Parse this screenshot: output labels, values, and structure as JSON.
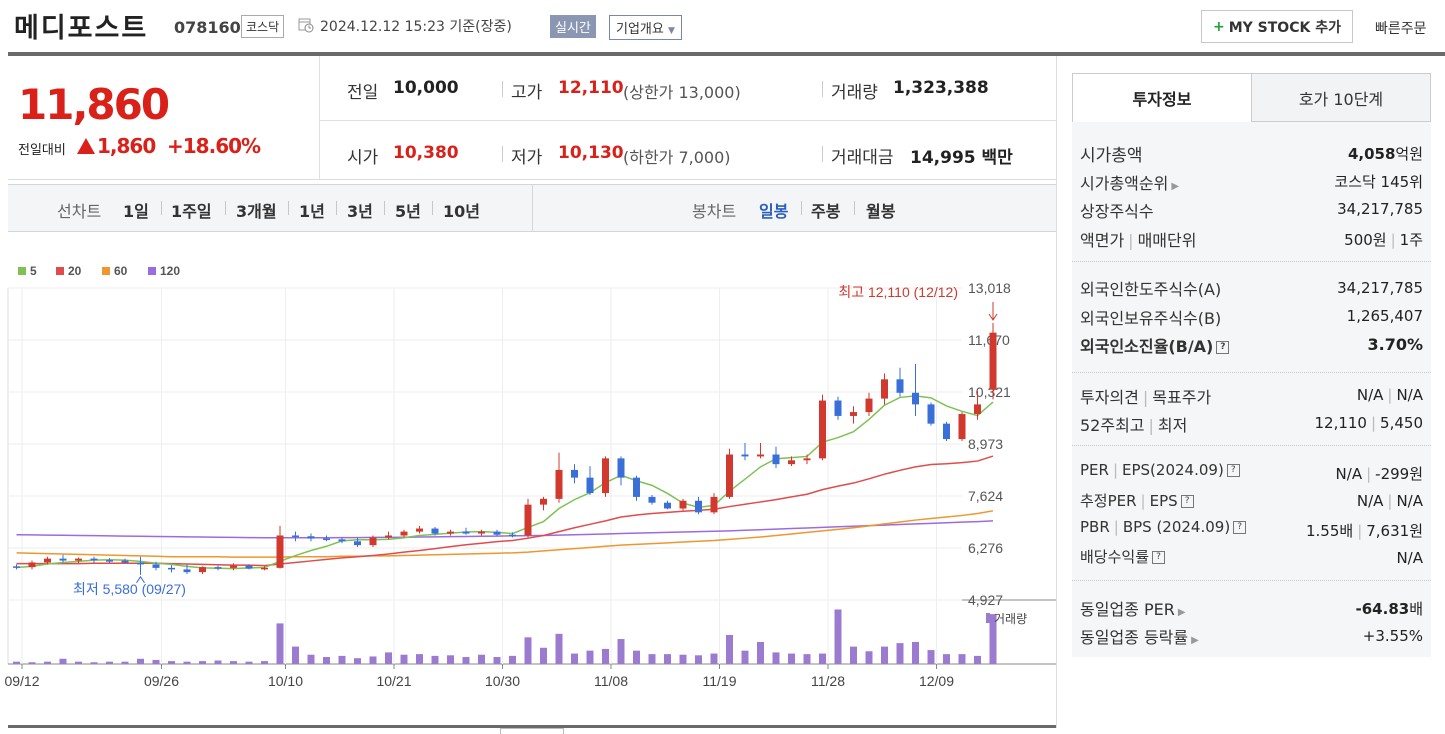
{
  "header": {
    "name": "메디포스트",
    "code": "078160",
    "market": "코스닥",
    "datetime": "2024.12.12 15:23  기준(장중)",
    "realtime": "실시간",
    "overview": "기업개요",
    "mystock_label": "MY STOCK 추가",
    "quick_order": "빠른주문"
  },
  "price": {
    "current": "11,860",
    "change_label": "전일대비",
    "change_value": "1,860",
    "change_pct": "+18.60%",
    "prev_label": "전일",
    "prev": "10,000",
    "high_label": "고가",
    "high": "12,110",
    "upper_limit": "(상한가 13,000)",
    "volume_label": "거래량",
    "volume": "1,323,388",
    "open_label": "시가",
    "open": "10,380",
    "low_label": "저가",
    "low": "10,130",
    "lower_limit": "(하한가 7,000)",
    "amount_label": "거래대금",
    "amount": "14,995 백만"
  },
  "period": {
    "line_label": "선차트",
    "line_items": [
      "1일",
      "1주일",
      "3개월",
      "1년",
      "3년",
      "5년",
      "10년"
    ],
    "candle_label": "봉차트",
    "candle_items": [
      "일봉",
      "주봉",
      "월봉"
    ],
    "candle_active": "일봉"
  },
  "chart_data": {
    "type": "candlestick",
    "title": "",
    "legend": [
      {
        "name": "5",
        "color": "#7ec253"
      },
      {
        "name": "20",
        "color": "#e04c4c"
      },
      {
        "name": "60",
        "color": "#f0962e"
      },
      {
        "name": "120",
        "color": "#9b6be0"
      }
    ],
    "yticks": [
      "13,018",
      "11,670",
      "10,321",
      "8,973",
      "7,624",
      "6,276",
      "4,927"
    ],
    "ylim": [
      4927,
      13018
    ],
    "xticks": [
      "09/12",
      "09/26",
      "10/10",
      "10/21",
      "10/30",
      "11/08",
      "11/19",
      "11/28",
      "12/09"
    ],
    "high_annotation": "최고 12,110 (12/12)",
    "low_annotation": "최저 5,580 (09/27)",
    "volume_label": "거래량",
    "candles": [
      [
        5800,
        5850,
        5720,
        5780
      ],
      [
        5780,
        5950,
        5720,
        5900
      ],
      [
        5900,
        6050,
        5850,
        6000
      ],
      [
        6000,
        6100,
        5900,
        5950
      ],
      [
        5950,
        6030,
        5880,
        6000
      ],
      [
        6000,
        6050,
        5900,
        5960
      ],
      [
        5960,
        6010,
        5900,
        5950
      ],
      [
        5950,
        6000,
        5880,
        5900
      ],
      [
        5900,
        6050,
        5580,
        5850
      ],
      [
        5850,
        5920,
        5700,
        5760
      ],
      [
        5760,
        5830,
        5640,
        5720
      ],
      [
        5720,
        5850,
        5600,
        5650
      ],
      [
        5650,
        5800,
        5600,
        5780
      ],
      [
        5780,
        5820,
        5700,
        5760
      ],
      [
        5760,
        5880,
        5700,
        5820
      ],
      [
        5820,
        5850,
        5720,
        5740
      ],
      [
        5740,
        5800,
        5700,
        5760
      ],
      [
        5760,
        6850,
        5740,
        6600
      ],
      [
        6600,
        6700,
        6450,
        6580
      ],
      [
        6580,
        6650,
        6450,
        6520
      ],
      [
        6520,
        6600,
        6450,
        6500
      ],
      [
        6500,
        6550,
        6400,
        6450
      ],
      [
        6450,
        6550,
        6300,
        6350
      ],
      [
        6350,
        6600,
        6300,
        6550
      ],
      [
        6550,
        6700,
        6500,
        6600
      ],
      [
        6600,
        6750,
        6550,
        6700
      ],
      [
        6700,
        6850,
        6650,
        6780
      ],
      [
        6780,
        6820,
        6600,
        6650
      ],
      [
        6650,
        6750,
        6600,
        6700
      ],
      [
        6700,
        6800,
        6620,
        6650
      ],
      [
        6650,
        6750,
        6600,
        6700
      ],
      [
        6700,
        6750,
        6580,
        6620
      ],
      [
        6620,
        6680,
        6550,
        6600
      ],
      [
        6600,
        7550,
        6550,
        7400
      ],
      [
        7400,
        7600,
        7250,
        7550
      ],
      [
        7550,
        8750,
        7450,
        8300
      ],
      [
        8300,
        8450,
        7950,
        8100
      ],
      [
        8100,
        8400,
        7650,
        7700
      ],
      [
        7700,
        8650,
        7600,
        8600
      ],
      [
        8600,
        8650,
        7900,
        8100
      ],
      [
        8100,
        8150,
        7500,
        7600
      ],
      [
        7600,
        7650,
        7400,
        7450
      ],
      [
        7450,
        7500,
        7280,
        7300
      ],
      [
        7300,
        7550,
        7250,
        7500
      ],
      [
        7500,
        7600,
        7150,
        7200
      ],
      [
        7200,
        7700,
        7150,
        7600
      ],
      [
        7600,
        8850,
        7550,
        8700
      ],
      [
        8700,
        9000,
        8550,
        8650
      ],
      [
        8650,
        9000,
        8600,
        8700
      ],
      [
        8700,
        8900,
        8350,
        8450
      ],
      [
        8450,
        8650,
        8400,
        8550
      ],
      [
        8550,
        8700,
        8450,
        8600
      ],
      [
        8600,
        10250,
        8550,
        10100
      ],
      [
        10100,
        10200,
        9600,
        9700
      ],
      [
        9700,
        9950,
        9500,
        9800
      ],
      [
        9800,
        10300,
        9700,
        10150
      ],
      [
        10150,
        10800,
        10000,
        10650
      ],
      [
        10650,
        10950,
        10200,
        10300
      ],
      [
        10300,
        11050,
        9700,
        10000
      ],
      [
        10000,
        10050,
        9450,
        9500
      ],
      [
        9500,
        9550,
        9050,
        9100
      ],
      [
        9100,
        9800,
        9050,
        9750
      ],
      [
        9750,
        10350,
        9600,
        10000
      ],
      [
        10380,
        12110,
        10130,
        11860
      ]
    ],
    "ma5": [
      5770,
      5800,
      5860,
      5900,
      5930,
      5960,
      5970,
      5960,
      5930,
      5880,
      5850,
      5800,
      5760,
      5750,
      5740,
      5760,
      5770,
      5930,
      6080,
      6210,
      6320,
      6460,
      6490,
      6490,
      6500,
      6540,
      6600,
      6630,
      6660,
      6690,
      6700,
      6680,
      6650,
      6810,
      6960,
      7300,
      7530,
      7710,
      7970,
      8160,
      8020,
      7900,
      7690,
      7440,
      7330,
      7380,
      7750,
      8060,
      8380,
      8590,
      8620,
      8650,
      9020,
      9140,
      9290,
      9610,
      9980,
      10180,
      10220,
      10170,
      9960,
      9820,
      9710,
      10060
    ],
    "ma20": [
      5870,
      5870,
      5870,
      5870,
      5870,
      5880,
      5880,
      5880,
      5880,
      5880,
      5870,
      5860,
      5850,
      5840,
      5830,
      5830,
      5820,
      5860,
      5900,
      5940,
      5980,
      6020,
      6050,
      6080,
      6120,
      6170,
      6210,
      6260,
      6310,
      6360,
      6400,
      6440,
      6470,
      6530,
      6600,
      6700,
      6800,
      6890,
      6980,
      7080,
      7130,
      7170,
      7200,
      7230,
      7250,
      7280,
      7350,
      7410,
      7470,
      7530,
      7600,
      7670,
      7790,
      7880,
      7960,
      8070,
      8190,
      8290,
      8380,
      8440,
      8460,
      8490,
      8530,
      8660
    ],
    "ma60": [
      6150,
      6140,
      6130,
      6120,
      6110,
      6100,
      6090,
      6080,
      6070,
      6060,
      6050,
      6050,
      6050,
      6050,
      6040,
      6040,
      6040,
      6040,
      6050,
      6050,
      6050,
      6060,
      6060,
      6070,
      6070,
      6080,
      6090,
      6100,
      6110,
      6120,
      6130,
      6140,
      6150,
      6170,
      6200,
      6230,
      6260,
      6290,
      6320,
      6350,
      6370,
      6390,
      6410,
      6430,
      6450,
      6470,
      6500,
      6530,
      6560,
      6600,
      6640,
      6680,
      6720,
      6760,
      6800,
      6850,
      6900,
      6950,
      7000,
      7040,
      7080,
      7120,
      7170,
      7240
    ],
    "ma120": [
      6620,
      6615,
      6610,
      6605,
      6600,
      6595,
      6590,
      6585,
      6580,
      6575,
      6570,
      6565,
      6560,
      6555,
      6550,
      6545,
      6540,
      6540,
      6540,
      6540,
      6540,
      6545,
      6545,
      6550,
      6550,
      6555,
      6560,
      6565,
      6570,
      6575,
      6580,
      6585,
      6590,
      6595,
      6600,
      6610,
      6620,
      6630,
      6640,
      6650,
      6660,
      6670,
      6680,
      6690,
      6700,
      6710,
      6720,
      6735,
      6750,
      6765,
      6780,
      6795,
      6810,
      6825,
      6840,
      6855,
      6870,
      6885,
      6900,
      6915,
      6930,
      6945,
      6960,
      6980
    ],
    "volumes": [
      40,
      30,
      40,
      90,
      40,
      30,
      40,
      40,
      90,
      70,
      50,
      40,
      50,
      60,
      50,
      40,
      50,
      700,
      300,
      160,
      120,
      140,
      100,
      130,
      200,
      160,
      170,
      140,
      150,
      120,
      160,
      120,
      140,
      460,
      280,
      520,
      180,
      230,
      260,
      430,
      230,
      170,
      170,
      160,
      150,
      180,
      500,
      230,
      380,
      200,
      180,
      170,
      180,
      940,
      300,
      220,
      300,
      360,
      380,
      240,
      170,
      170,
      140,
      860
    ]
  },
  "side": {
    "tabs": [
      "투자정보",
      "호가 10단계"
    ],
    "rows1": [
      {
        "label": "시가총액",
        "value": "4,058",
        "unit": "억원"
      },
      {
        "label": "시가총액순위",
        "value": "코스닥 145위"
      },
      {
        "label": "상장주식수",
        "value": "34,217,785"
      },
      {
        "label": "액면가",
        "label2": "매매단위",
        "value": "500원",
        "value2": "1주"
      }
    ],
    "rows2": [
      {
        "label": "외국인한도주식수(A)",
        "value": "34,217,785"
      },
      {
        "label": "외국인보유주식수(B)",
        "value": "1,265,407"
      },
      {
        "label": "외국인소진율(B/A)",
        "value": "3.70%"
      }
    ],
    "rows3": [
      {
        "label": "투자의견",
        "label2": "목표주가",
        "value": "N/A",
        "value2": "N/A"
      },
      {
        "label": "52주최고",
        "label2": "최저",
        "value": "12,110",
        "value2": "5,450"
      }
    ],
    "rows4": [
      {
        "label": "PER",
        "label2": "EPS(2024.09)",
        "value": "N/A",
        "value2": "-299원"
      },
      {
        "label": "추정PER",
        "label2": "EPS",
        "value": "N/A",
        "value2": "N/A"
      },
      {
        "label": "PBR",
        "label2": "BPS (2024.09)",
        "value": "1.55배",
        "value2": "7,631원"
      },
      {
        "label": "배당수익률",
        "value": "N/A"
      }
    ],
    "rows5": [
      {
        "label": "동일업종 PER",
        "value": "-64.83",
        "unit": "배"
      },
      {
        "label": "동일업종 등락률",
        "value": "+3.55%"
      }
    ],
    "q": "?"
  }
}
